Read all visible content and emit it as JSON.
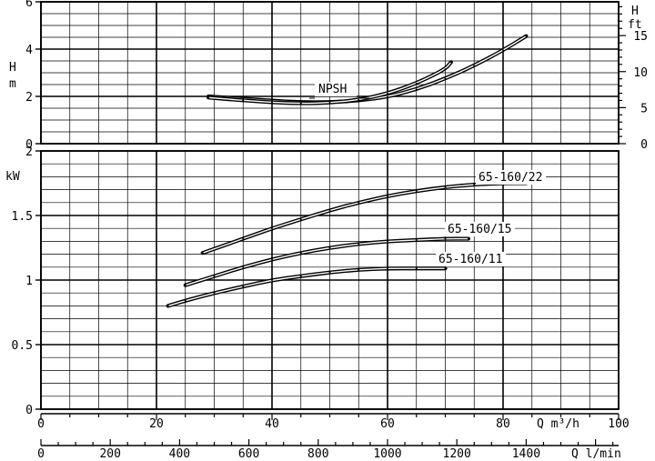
{
  "chart_data": [
    {
      "type": "line",
      "name": "npsh-panel",
      "ylabel_left": [
        "H",
        "m"
      ],
      "ylabel_right": [
        "H",
        "ft"
      ],
      "xlim": [
        0,
        100
      ],
      "ylim": [
        0,
        6
      ],
      "yticks_left": [
        "0",
        "2",
        "4",
        "6"
      ],
      "yticks_right": [
        "0",
        "5",
        "10",
        "15"
      ],
      "right_ticks_m": [
        0,
        1.524,
        3.048,
        4.572
      ],
      "grid": true,
      "series": [
        {
          "name": "NPSH",
          "x": [
            29,
            35,
            40,
            45,
            50,
            55,
            60,
            65,
            70,
            75,
            80,
            84
          ],
          "y": [
            2.0,
            1.9,
            1.82,
            1.75,
            1.75,
            1.82,
            1.98,
            2.3,
            2.75,
            3.3,
            3.95,
            4.55
          ]
        },
        {
          "x": [
            29,
            35,
            40,
            45,
            50,
            55,
            60,
            65,
            70,
            71
          ],
          "y": [
            1.95,
            1.83,
            1.75,
            1.7,
            1.73,
            1.85,
            2.12,
            2.55,
            3.15,
            3.45
          ]
        }
      ]
    },
    {
      "type": "line",
      "name": "power-panel",
      "ylabel": "kW",
      "xlim": [
        0,
        100
      ],
      "ylim": [
        0,
        2
      ],
      "yticks": [
        "0",
        "0.5",
        "1",
        "1.5",
        "2"
      ],
      "xticks_m3h": [
        "0",
        "20",
        "40",
        "60",
        "80",
        "100"
      ],
      "xticks_lmin": [
        "0",
        "200",
        "400",
        "600",
        "800",
        "1000",
        "1200",
        "1400"
      ],
      "xlabel_m3h": "Q m³/h",
      "xlabel_lmin": "Q l/min",
      "grid": true,
      "series": [
        {
          "name": "65-160/22",
          "x": [
            28,
            35,
            40,
            45,
            50,
            55,
            60,
            65,
            70,
            75,
            80,
            82,
            84
          ],
          "y": [
            1.21,
            1.32,
            1.4,
            1.47,
            1.54,
            1.6,
            1.65,
            1.69,
            1.72,
            1.74,
            1.75,
            1.75,
            1.75
          ]
        },
        {
          "name": "65-160/15",
          "x": [
            25,
            30,
            35,
            40,
            45,
            50,
            55,
            60,
            65,
            70,
            74
          ],
          "y": [
            0.96,
            1.03,
            1.1,
            1.16,
            1.21,
            1.25,
            1.28,
            1.3,
            1.31,
            1.32,
            1.32
          ]
        },
        {
          "name": "65-160/11",
          "x": [
            22,
            25,
            30,
            35,
            40,
            45,
            50,
            55,
            60,
            65,
            70
          ],
          "y": [
            0.8,
            0.84,
            0.9,
            0.95,
            1.0,
            1.03,
            1.06,
            1.08,
            1.09,
            1.09,
            1.09
          ]
        }
      ]
    }
  ]
}
